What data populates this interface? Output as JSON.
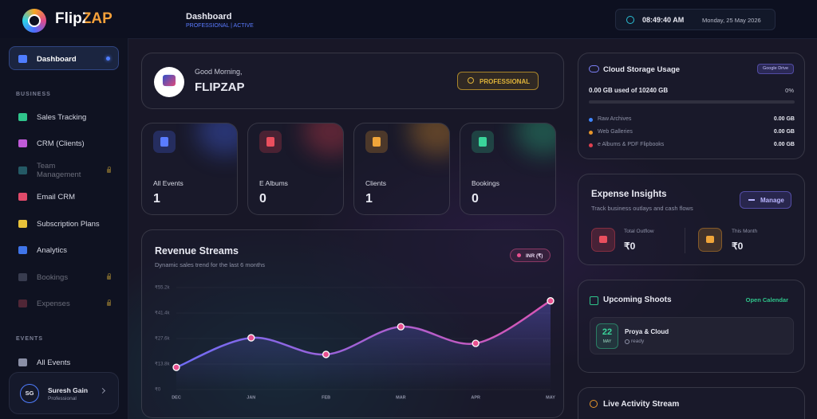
{
  "brand": {
    "name": "FlipZAP"
  },
  "header": {
    "title": "Dashboard",
    "subtitle": "PROFESSIONAL | ACTIVE",
    "time": "08:49:40 AM",
    "date": "Monday, 25 May 2026"
  },
  "sidebar": {
    "active": "Dashboard",
    "sections": [
      {
        "title": "BUSINESS",
        "items": [
          "Sales Tracking",
          "CRM (Clients)",
          "Team Management",
          "Email CRM",
          "Subscription Plans",
          "Analytics",
          "Bookings",
          "Expenses"
        ]
      },
      {
        "title": "EVENTS",
        "items": [
          "All Events"
        ]
      }
    ],
    "user": {
      "initials": "SG",
      "name": "Suresh Gain",
      "role": "Professional"
    }
  },
  "welcome": {
    "greeting": "Good Morning,",
    "name": "FLIPZAP",
    "badge": "PROFESSIONAL"
  },
  "stats": [
    {
      "label": "All Events",
      "value": 1
    },
    {
      "label": "E Albums",
      "value": 0
    },
    {
      "label": "Clients",
      "value": 1
    },
    {
      "label": "Bookings",
      "value": 0
    }
  ],
  "storage": {
    "title": "Cloud Storage Usage",
    "provider": "Google Drive",
    "used": "0.00 GB used of 10240 GB",
    "percent": "0%",
    "items": [
      {
        "label": "Raw Archives",
        "value": "0.00 GB"
      },
      {
        "label": "Web Galleries",
        "value": "0.00 GB"
      },
      {
        "label": "e Albums & PDF Flipbooks",
        "value": "0.00 GB"
      }
    ]
  },
  "expenses": {
    "title": "Expense Insights",
    "subtitle": "Track business outlays and cash flows",
    "button": "Manage",
    "total_label": "Total Outflow",
    "total_value": "₹0",
    "month_label": "This Month",
    "month_value": "₹0"
  },
  "shoots": {
    "title": "Upcoming Shoots",
    "link": "Open Calendar",
    "events": [
      {
        "day": "22",
        "month": "MAY",
        "name": "Proya & Cloud",
        "status": "ready"
      }
    ]
  },
  "activity": {
    "title": "Live Activity Stream"
  },
  "chart_data": {
    "type": "line",
    "title": "Revenue Streams",
    "subtitle": "Dynamic sales trend for the last 6 months",
    "currency": "INR (₹)",
    "categories": [
      "DEC",
      "JAN",
      "FEB",
      "MAR",
      "APR",
      "MAY"
    ],
    "values": [
      12000,
      28000,
      19000,
      34000,
      25000,
      48000
    ],
    "color": "#6f6cf5",
    "color_end": "#d956b4",
    "marker_color": "#e8508f",
    "ylim": [
      0,
      55200
    ],
    "yticks": [
      {
        "value": 0,
        "label": "₹0"
      },
      {
        "value": 13800,
        "label": "₹13.8k"
      },
      {
        "value": 27600,
        "label": "₹27.6k"
      },
      {
        "value": 41400,
        "label": "₹41.4k"
      },
      {
        "value": 55200,
        "label": "₹55.2k"
      }
    ],
    "grid": true
  }
}
